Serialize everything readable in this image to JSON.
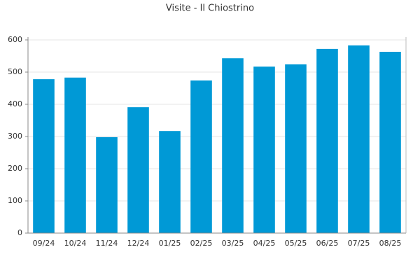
{
  "chart_data": {
    "type": "bar",
    "title": "Visite - Il Chiostrino",
    "categories": [
      "09/24",
      "10/24",
      "11/24",
      "12/24",
      "01/25",
      "02/25",
      "03/25",
      "04/25",
      "05/25",
      "06/25",
      "07/25",
      "08/25"
    ],
    "values": [
      478,
      483,
      298,
      391,
      317,
      474,
      543,
      517,
      524,
      572,
      583,
      563
    ],
    "color": "#0099d6",
    "ylim": [
      0,
      600
    ],
    "yticks": [
      0,
      100,
      200,
      300,
      400,
      500,
      600
    ],
    "grid": true
  }
}
